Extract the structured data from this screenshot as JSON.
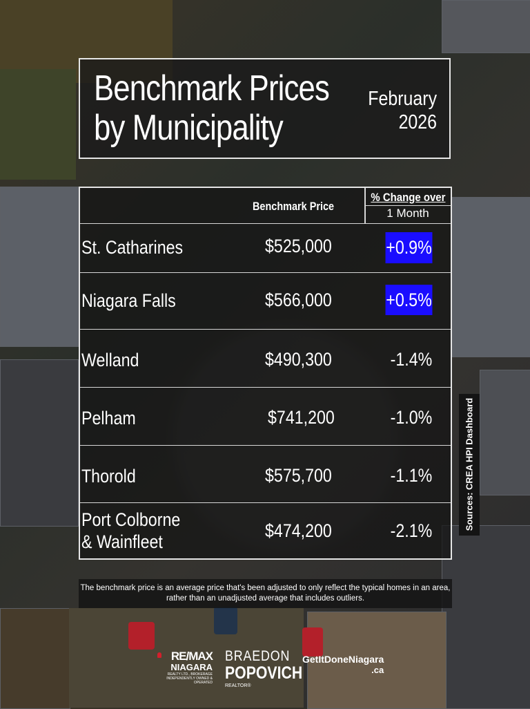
{
  "header": {
    "title_line1": "Benchmark Prices",
    "title_line2": "by Municipality",
    "month": "February",
    "year": "2026"
  },
  "table": {
    "col_price": "Benchmark Price",
    "col_change_line1": "% Change over",
    "col_change_line2": "1 Month",
    "rows": [
      {
        "name": "St. Catharines",
        "price": "$525,000",
        "change": "+0.9%"
      },
      {
        "name": "Niagara Falls",
        "price": "$566,000",
        "change": "+0.5%"
      },
      {
        "name": "Welland",
        "price": "$490,300",
        "change": "-1.4%"
      },
      {
        "name": "Pelham",
        "price": "$741,200",
        "change": "-1.0%"
      },
      {
        "name": "Thorold",
        "price": "$575,700",
        "change": "-1.1%"
      },
      {
        "name_line1": "Port Colborne",
        "name_line2": "& Wainfleet",
        "price": "$474,200",
        "change": "-2.1%"
      }
    ],
    "highlight_color": "#1a0dff"
  },
  "note": "The benchmark price is an average price that's been adjusted to only reflect the typical homes in an area, rather than an unadjusted average that includes outliers.",
  "sources": "Sources:  CREA HPI Dashboard",
  "footer": {
    "remax_brand": "RE/MAX",
    "remax_region": "NIAGARA",
    "remax_tagline": "REALTY LTD., BROKERAGE",
    "remax_independent": "INDEPENDENTLY OWNED & OPERATED",
    "agent_first": "BRAEDON",
    "agent_last": "POPOVICH",
    "agent_title": "REALTOR®",
    "site_line1": "GetItDoneNiagara",
    "site_line2": ".ca"
  }
}
